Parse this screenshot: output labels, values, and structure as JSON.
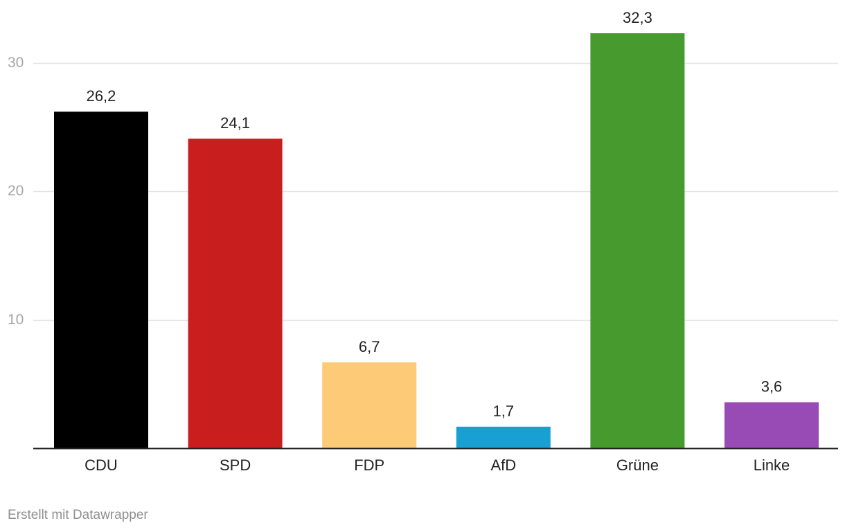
{
  "chart_data": {
    "type": "bar",
    "categories": [
      "CDU",
      "SPD",
      "FDP",
      "AfD",
      "Grüne",
      "Linke"
    ],
    "values": [
      26.2,
      24.1,
      6.7,
      1.7,
      32.3,
      3.6
    ],
    "value_labels": [
      "26,2",
      "24,1",
      "6,7",
      "1,7",
      "32,3",
      "3,6"
    ],
    "colors": [
      "#000000",
      "#c81e1e",
      "#fdca78",
      "#18a0d2",
      "#479a2d",
      "#984ab5"
    ],
    "yticks": [
      10,
      20,
      30
    ],
    "ylim": [
      0,
      32.3
    ],
    "grid": true
  },
  "footer": {
    "credit": "Erstellt mit Datawrapper"
  }
}
